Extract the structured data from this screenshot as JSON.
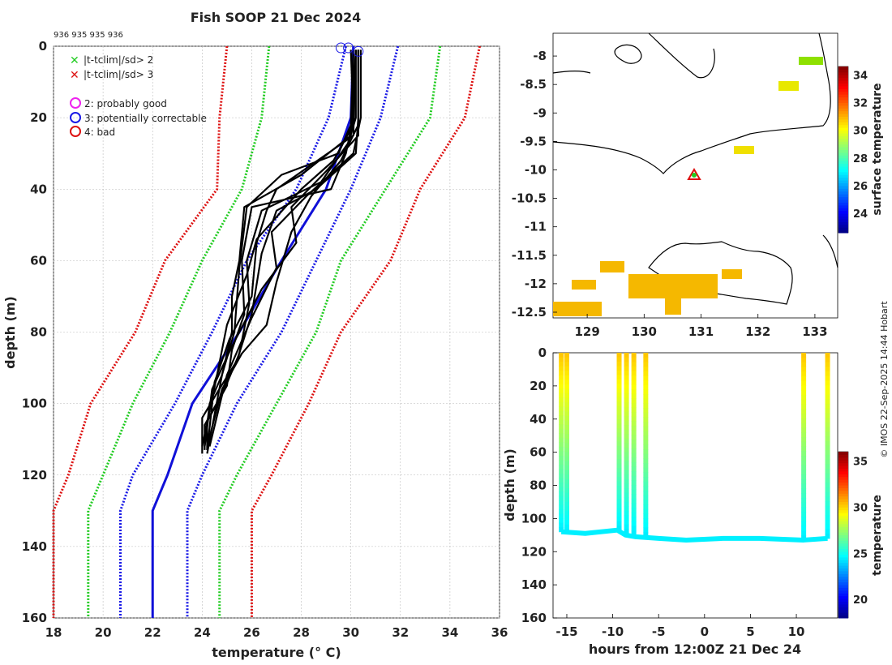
{
  "title": "Fish SOOP 21 Dec 2024",
  "platform_ids": "936 935 935 936",
  "credit": "© IMOS 22-Sep-2025 14:44 Hobart",
  "colors": {
    "clim_mean": "#1010d8",
    "sd1": "#1a1ae6",
    "sd2": "#22cc22",
    "sd3": "#dd1111",
    "profile": "#000000",
    "coast": "#000000",
    "sst_patch": "#f5b800",
    "sst_green": "#8ee000"
  },
  "chart_data": [
    {
      "type": "line",
      "name": "temperature-depth profiles",
      "xlabel": "temperature (° C)",
      "ylabel": "depth (m)",
      "xlim": [
        18,
        36
      ],
      "ylim": [
        160,
        0
      ],
      "xticks": [
        18,
        20,
        22,
        24,
        26,
        28,
        30,
        32,
        34,
        36
      ],
      "yticks": [
        0,
        20,
        40,
        60,
        80,
        100,
        120,
        140,
        160
      ],
      "grid": true,
      "legend": [
        {
          "marker": "x",
          "color": "#22cc22",
          "label": "|t-tclim|/sd> 2"
        },
        {
          "marker": "x",
          "color": "#dd1111",
          "label": "|t-tclim|/sd> 3"
        },
        {
          "marker": "o",
          "color": "#ee22ee",
          "label": "2: probably good"
        },
        {
          "marker": "o",
          "color": "#1a1ae6",
          "label": "3: potentially correctable"
        },
        {
          "marker": "o",
          "color": "#dd1111",
          "label": "4: bad"
        }
      ],
      "climatology": {
        "depth": [
          0,
          20,
          40,
          60,
          80,
          100,
          120,
          130,
          160
        ],
        "mean": [
          30.1,
          30.0,
          29.0,
          27.2,
          25.5,
          23.6,
          22.6,
          22.0,
          22.0
        ],
        "sd1_minus": [
          29.8,
          29.1,
          27.8,
          25.8,
          24.4,
          22.9,
          21.2,
          20.7,
          20.7
        ],
        "sd1_plus": [
          31.9,
          31.2,
          30.0,
          28.6,
          27.2,
          25.4,
          24.0,
          23.4,
          23.4
        ],
        "sd2_minus": [
          26.7,
          26.4,
          25.6,
          24.0,
          22.7,
          21.2,
          20.0,
          19.4,
          19.4
        ],
        "sd2_plus": [
          33.6,
          33.2,
          31.4,
          29.6,
          28.6,
          27.0,
          25.4,
          24.7,
          24.7
        ],
        "sd3_minus": [
          25.0,
          24.7,
          24.6,
          22.5,
          21.3,
          19.5,
          18.6,
          18.0,
          18.0
        ],
        "sd3_plus": [
          35.2,
          34.6,
          32.8,
          31.6,
          29.6,
          28.3,
          26.8,
          26.0,
          26.0
        ]
      },
      "profiles": [
        {
          "t": [
            30.0,
            30.1,
            29.8,
            29.2,
            26.0,
            25.6,
            25.7,
            25.2,
            25.0,
            24.2,
            24.2
          ],
          "d": [
            1,
            20,
            30,
            40,
            45,
            60,
            75,
            85,
            95,
            105,
            113
          ]
        },
        {
          "t": [
            30.2,
            30.2,
            29.9,
            28.8,
            26.4,
            25.8,
            25.9,
            25.5,
            24.9,
            24.1,
            24.1
          ],
          "d": [
            1,
            20,
            27,
            38,
            46,
            60,
            72,
            86,
            96,
            106,
            113
          ]
        },
        {
          "t": [
            30.3,
            30.3,
            30.2,
            28.6,
            27.0,
            26.4,
            26.0,
            25.4,
            24.6,
            24.0,
            24.0
          ],
          "d": [
            1,
            20,
            30,
            40,
            46,
            58,
            75,
            88,
            97,
            104,
            114
          ]
        },
        {
          "t": [
            30.1,
            30.0,
            29.5,
            27.2,
            25.8,
            25.5,
            25.3,
            24.8,
            24.3,
            24.1
          ],
          "d": [
            1,
            22,
            30,
            36,
            45,
            62,
            80,
            92,
            100,
            112
          ]
        },
        {
          "t": [
            30.3,
            30.3,
            29.6,
            28.4,
            27.6,
            27.0,
            26.6,
            25.6,
            24.8,
            24.2
          ],
          "d": [
            1,
            22,
            32,
            42,
            52,
            66,
            78,
            86,
            96,
            112
          ]
        },
        {
          "t": [
            30.2,
            30.1,
            27.0,
            26.6,
            26.2,
            26.0,
            25.1,
            24.5,
            24.2
          ],
          "d": [
            1,
            25,
            40,
            46,
            55,
            70,
            82,
            94,
            113
          ]
        },
        {
          "t": [
            30.3,
            30.3,
            29.0,
            27.6,
            27.8,
            26.4,
            25.2,
            24.4,
            24.1
          ],
          "d": [
            1,
            25,
            35,
            45,
            55,
            68,
            84,
            96,
            112
          ]
        },
        {
          "t": [
            30.4,
            30.4,
            30.1,
            28.2,
            26.8,
            27.0,
            26.0,
            25.0,
            24.3
          ],
          "d": [
            1,
            20,
            30,
            42,
            52,
            62,
            76,
            92,
            112
          ]
        },
        {
          "t": [
            30.2,
            30.0,
            28.0,
            25.7,
            25.5,
            25.2,
            25.2,
            24.8,
            24.2
          ],
          "d": [
            1,
            25,
            36,
            45,
            60,
            70,
            80,
            92,
            114
          ]
        },
        {
          "t": [
            30.1,
            30.1,
            29.3,
            28.0,
            26.2,
            25.8,
            25.0,
            24.6,
            24.0
          ],
          "d": [
            1,
            22,
            32,
            40,
            54,
            64,
            78,
            92,
            112
          ]
        }
      ],
      "surface_flags": [
        {
          "t": 29.6,
          "d": 0
        },
        {
          "t": 29.9,
          "d": 0
        },
        {
          "t": 30.3,
          "d": 1
        }
      ]
    },
    {
      "type": "heatmap",
      "name": "surface temperature map",
      "xlim": [
        128.4,
        133.4
      ],
      "ylim": [
        -12.6,
        -7.6
      ],
      "xticks": [
        129,
        130,
        131,
        132,
        133
      ],
      "yticks": [
        -8,
        -8.5,
        -9,
        -9.5,
        -10,
        -10.5,
        -11,
        -11.5,
        -12,
        -12.5
      ],
      "colorbar_label": "surface temperature",
      "colorbar_ticks": [
        24,
        26,
        28,
        30,
        32,
        34
      ],
      "colorbar_range": [
        22.6,
        34.6
      ],
      "drop_location": {
        "lon": 130.9,
        "lat": -10.08
      }
    },
    {
      "type": "heatmap",
      "name": "depth-time section",
      "xlabel": "hours from 12:00Z 21 Dec 24",
      "ylabel": "depth (m)",
      "xlim": [
        -16.5,
        14.5
      ],
      "ylim": [
        160,
        0
      ],
      "xticks": [
        -15,
        -10,
        -5,
        0,
        5,
        10
      ],
      "yticks": [
        0,
        20,
        40,
        60,
        80,
        100,
        120,
        140,
        160
      ],
      "colorbar_label": "temperature",
      "colorbar_ticks": [
        20,
        25,
        30,
        35
      ],
      "colorbar_range": [
        18,
        36
      ],
      "casts": [
        {
          "hour": -15.6,
          "max_depth": 108
        },
        {
          "hour": -15.0,
          "max_depth": 109
        },
        {
          "hour": -9.3,
          "max_depth": 107
        },
        {
          "hour": -8.5,
          "max_depth": 109
        },
        {
          "hour": -7.7,
          "max_depth": 110
        },
        {
          "hour": -6.4,
          "max_depth": 111
        },
        {
          "hour": 10.8,
          "max_depth": 113
        },
        {
          "hour": 13.4,
          "max_depth": 112
        }
      ],
      "bottom_line": {
        "hours": [
          -15.6,
          -13,
          -9.5,
          -8.6,
          -7.5,
          -5,
          -2,
          2,
          6,
          10.8,
          13.4
        ],
        "depths": [
          108,
          109,
          107,
          110,
          111,
          112,
          113,
          112,
          112,
          113,
          112
        ]
      }
    }
  ]
}
